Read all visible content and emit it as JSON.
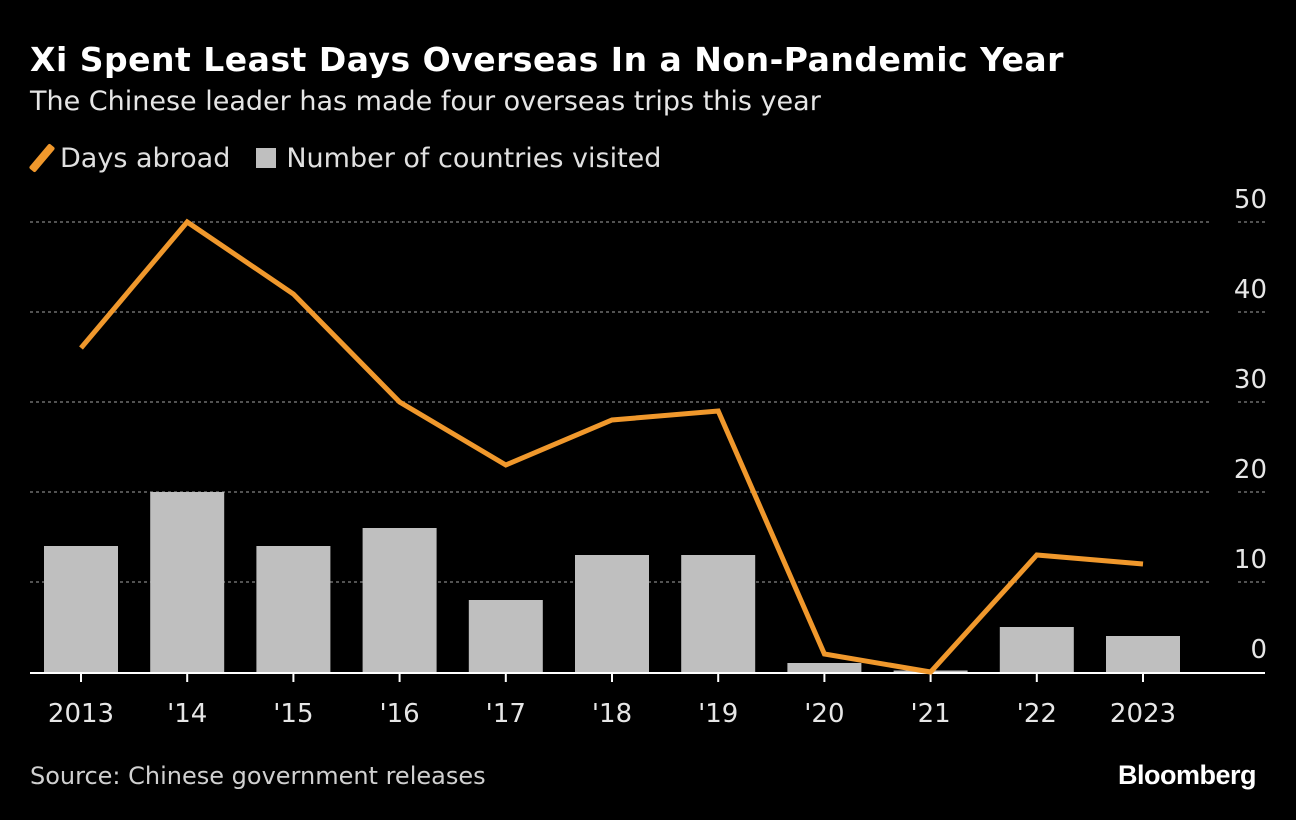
{
  "header": {
    "title": "Xi Spent Least Days Overseas In a Non-Pandemic Year",
    "subtitle": "The Chinese leader has made four overseas trips this year"
  },
  "legend": {
    "line_label": "Days abroad",
    "bar_label": "Number of countries visited"
  },
  "footer": {
    "source": "Source: Chinese government releases",
    "brand": "Bloomberg"
  },
  "colors": {
    "line": "#f0982c",
    "bar": "#bfbfbf",
    "grid": "#6e6e6e",
    "axis": "#ffffff",
    "tick_text": "#e6e6e6"
  },
  "chart_data": {
    "type": "bar+line",
    "title": "Xi Spent Least Days Overseas In a Non-Pandemic Year",
    "subtitle": "The Chinese leader has made four overseas trips this year",
    "categories": [
      "2013",
      "'14",
      "'15",
      "'16",
      "'17",
      "'18",
      "'19",
      "'20",
      "'21",
      "'22",
      "2023"
    ],
    "series": [
      {
        "name": "Number of countries visited",
        "kind": "bar",
        "values": [
          14,
          20,
          14,
          16,
          8,
          13,
          13,
          1,
          0,
          5,
          4
        ]
      },
      {
        "name": "Days abroad",
        "kind": "line",
        "values": [
          36,
          50,
          42,
          30,
          23,
          28,
          29,
          2,
          0,
          13,
          12
        ]
      }
    ],
    "ylim": [
      0,
      50
    ],
    "yticks": [
      0,
      10,
      20,
      30,
      40,
      50
    ],
    "y_axis_side": "right",
    "grid": true,
    "legend_position": "top-left"
  }
}
